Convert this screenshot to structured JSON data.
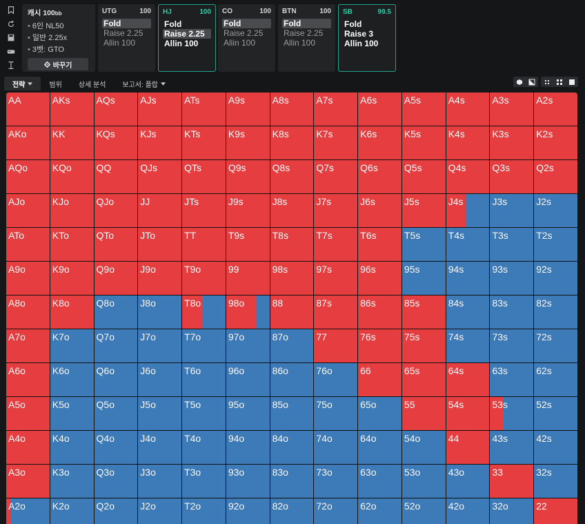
{
  "colors": {
    "raise": "#e63e40",
    "fold": "#3d7ab8",
    "accent": "#1fa58e"
  },
  "rail_icons": [
    "bookmark-icon",
    "reset-icon",
    "save-icon",
    "gamepad-icon",
    "text-cursor-icon"
  ],
  "game": {
    "title": "캐시 100",
    "title_unit": "bb",
    "lines": [
      "6인 NL50",
      "일반 2.25x",
      "3벳: GTO"
    ],
    "change_label": "바꾸기",
    "change_icon": "gear-icon"
  },
  "positions": [
    {
      "name": "UTG",
      "stack": "100",
      "options": [
        "Fold",
        "Raise 2.25",
        "Allin 100"
      ],
      "selected": 0,
      "active": false
    },
    {
      "name": "HJ",
      "stack": "100",
      "options": [
        "Fold",
        "Raise 2.25",
        "Allin 100"
      ],
      "selected": 1,
      "active": true
    },
    {
      "name": "CO",
      "stack": "100",
      "options": [
        "Fold",
        "Raise 2.25",
        "Allin 100"
      ],
      "selected": 0,
      "active": false
    },
    {
      "name": "BTN",
      "stack": "100",
      "options": [
        "Fold",
        "Raise 2.25",
        "Allin 100"
      ],
      "selected": 0,
      "active": false
    },
    {
      "name": "SB",
      "stack": "99.5",
      "options": [
        "Fold",
        "Raise 3",
        "Allin 100"
      ],
      "selected": -1,
      "active": true
    }
  ],
  "tabs": [
    {
      "label": "전략",
      "dropdown": true,
      "active": true
    },
    {
      "label": "범위",
      "dropdown": false,
      "active": false
    },
    {
      "label": "상세 분석",
      "dropdown": false,
      "active": false
    },
    {
      "label": "보고서: 플랍",
      "dropdown": true,
      "active": false
    }
  ],
  "tool_icons": [
    "cube-icon",
    "contrast-icon",
    "compact-grid-icon",
    "grid-icon",
    "square-icon"
  ],
  "grid": {
    "ranks": [
      "A",
      "K",
      "Q",
      "J",
      "T",
      "9",
      "8",
      "7",
      "6",
      "5",
      "4",
      "3",
      "2"
    ],
    "raise_frequency": [
      [
        1,
        1,
        1,
        1,
        1,
        1,
        1,
        1,
        1,
        1,
        1,
        1,
        1
      ],
      [
        1,
        1,
        1,
        1,
        1,
        1,
        1,
        1,
        1,
        1,
        1,
        1,
        1
      ],
      [
        1,
        1,
        1,
        1,
        1,
        1,
        1,
        1,
        1,
        1,
        1,
        1,
        1
      ],
      [
        1,
        1,
        1,
        1,
        1,
        1,
        1,
        1,
        1,
        1,
        0.47,
        0,
        0
      ],
      [
        1,
        1,
        1,
        1,
        1,
        1,
        1,
        1,
        1,
        0,
        0,
        0,
        0
      ],
      [
        1,
        1,
        1,
        1,
        1,
        1,
        1,
        1,
        1,
        0,
        0,
        0,
        0
      ],
      [
        1,
        1,
        0,
        0,
        0.47,
        0.69,
        1,
        1,
        1,
        1,
        0,
        0,
        0
      ],
      [
        1,
        0,
        0,
        0,
        0,
        0,
        0,
        1,
        1,
        1,
        0,
        0,
        0
      ],
      [
        1,
        0,
        0,
        0,
        0,
        0,
        0,
        0,
        1,
        1,
        1,
        0,
        0
      ],
      [
        1,
        0,
        0,
        0,
        0,
        0,
        0,
        0,
        0,
        1,
        1,
        0.29,
        0
      ],
      [
        1,
        0,
        0,
        0,
        0,
        0,
        0,
        0,
        0,
        0,
        1,
        0,
        0
      ],
      [
        1,
        0,
        0,
        0,
        0,
        0,
        0,
        0,
        0,
        0,
        0,
        1,
        0
      ],
      [
        0.1,
        0,
        0,
        0,
        0,
        0,
        0,
        0,
        0,
        0,
        0,
        0,
        1
      ]
    ]
  }
}
